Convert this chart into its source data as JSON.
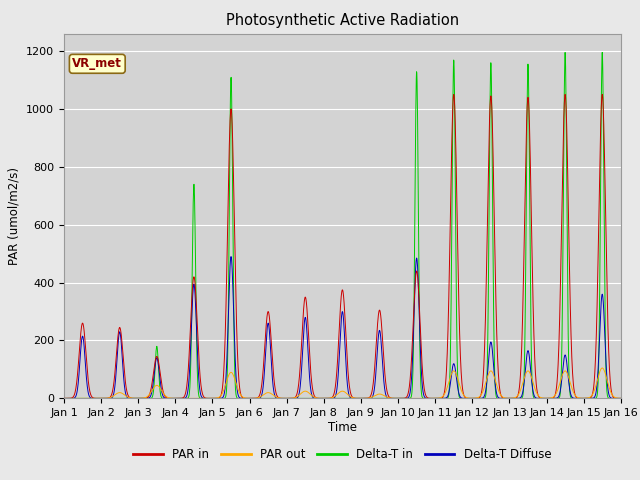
{
  "title": "Photosynthetic Active Radiation",
  "ylabel": "PAR (umol/m2/s)",
  "xlabel": "Time",
  "legend_label": "VR_met",
  "series_labels": [
    "PAR in",
    "PAR out",
    "Delta-T in",
    "Delta-T Diffuse"
  ],
  "series_colors": [
    "#cc0000",
    "#ffaa00",
    "#00cc00",
    "#0000bb"
  ],
  "ylim": [
    0,
    1260
  ],
  "fig_color": "#e8e8e8",
  "plot_bg_color": "#d3d3d3",
  "xtick_labels": [
    "Jan 1",
    "Jan 2",
    "Jan 3",
    "Jan 4",
    "Jan 5",
    "Jan 6",
    "Jan 7",
    "Jan 8",
    "Jan 9",
    "Jan 10",
    "Jan 11",
    "Jan 12",
    "Jan 13",
    "Jan 14",
    "Jan 15",
    "Jan 16"
  ],
  "days": 15,
  "points_per_day": 144,
  "par_in_days": [
    0,
    1,
    2,
    3,
    4,
    5,
    6,
    7,
    8,
    9,
    10,
    11,
    12,
    13,
    14
  ],
  "par_in_peaks": [
    260,
    245,
    145,
    420,
    1000,
    300,
    350,
    375,
    305,
    440,
    1050,
    1045,
    1040,
    1050,
    1050
  ],
  "par_in_width": [
    0.09,
    0.09,
    0.09,
    0.09,
    0.09,
    0.09,
    0.09,
    0.09,
    0.09,
    0.09,
    0.09,
    0.09,
    0.09,
    0.09,
    0.09
  ],
  "par_out_days": [
    1,
    2,
    4,
    5,
    6,
    7,
    8,
    10,
    11,
    12,
    13,
    14
  ],
  "par_out_peaks": [
    20,
    45,
    90,
    20,
    25,
    25,
    15,
    95,
    95,
    95,
    95,
    105
  ],
  "par_out_width": [
    0.13,
    0.13,
    0.13,
    0.13,
    0.13,
    0.13,
    0.13,
    0.13,
    0.13,
    0.13,
    0.13,
    0.13
  ],
  "green_days": [
    2,
    3,
    4,
    9,
    10,
    11,
    12,
    13,
    14
  ],
  "green_peaks": [
    180,
    740,
    1110,
    1130,
    1170,
    1160,
    1155,
    1195,
    1195
  ],
  "green_width": [
    0.045,
    0.045,
    0.045,
    0.045,
    0.045,
    0.045,
    0.045,
    0.045,
    0.045
  ],
  "blue_days": [
    0,
    1,
    2,
    3,
    4,
    5,
    6,
    7,
    8,
    9,
    10,
    11,
    12,
    13,
    14
  ],
  "blue_peaks": [
    215,
    230,
    140,
    395,
    490,
    260,
    280,
    300,
    235,
    485,
    120,
    195,
    165,
    150,
    360
  ],
  "blue_width": [
    0.07,
    0.07,
    0.07,
    0.07,
    0.07,
    0.07,
    0.07,
    0.07,
    0.07,
    0.07,
    0.07,
    0.07,
    0.07,
    0.07,
    0.07
  ]
}
